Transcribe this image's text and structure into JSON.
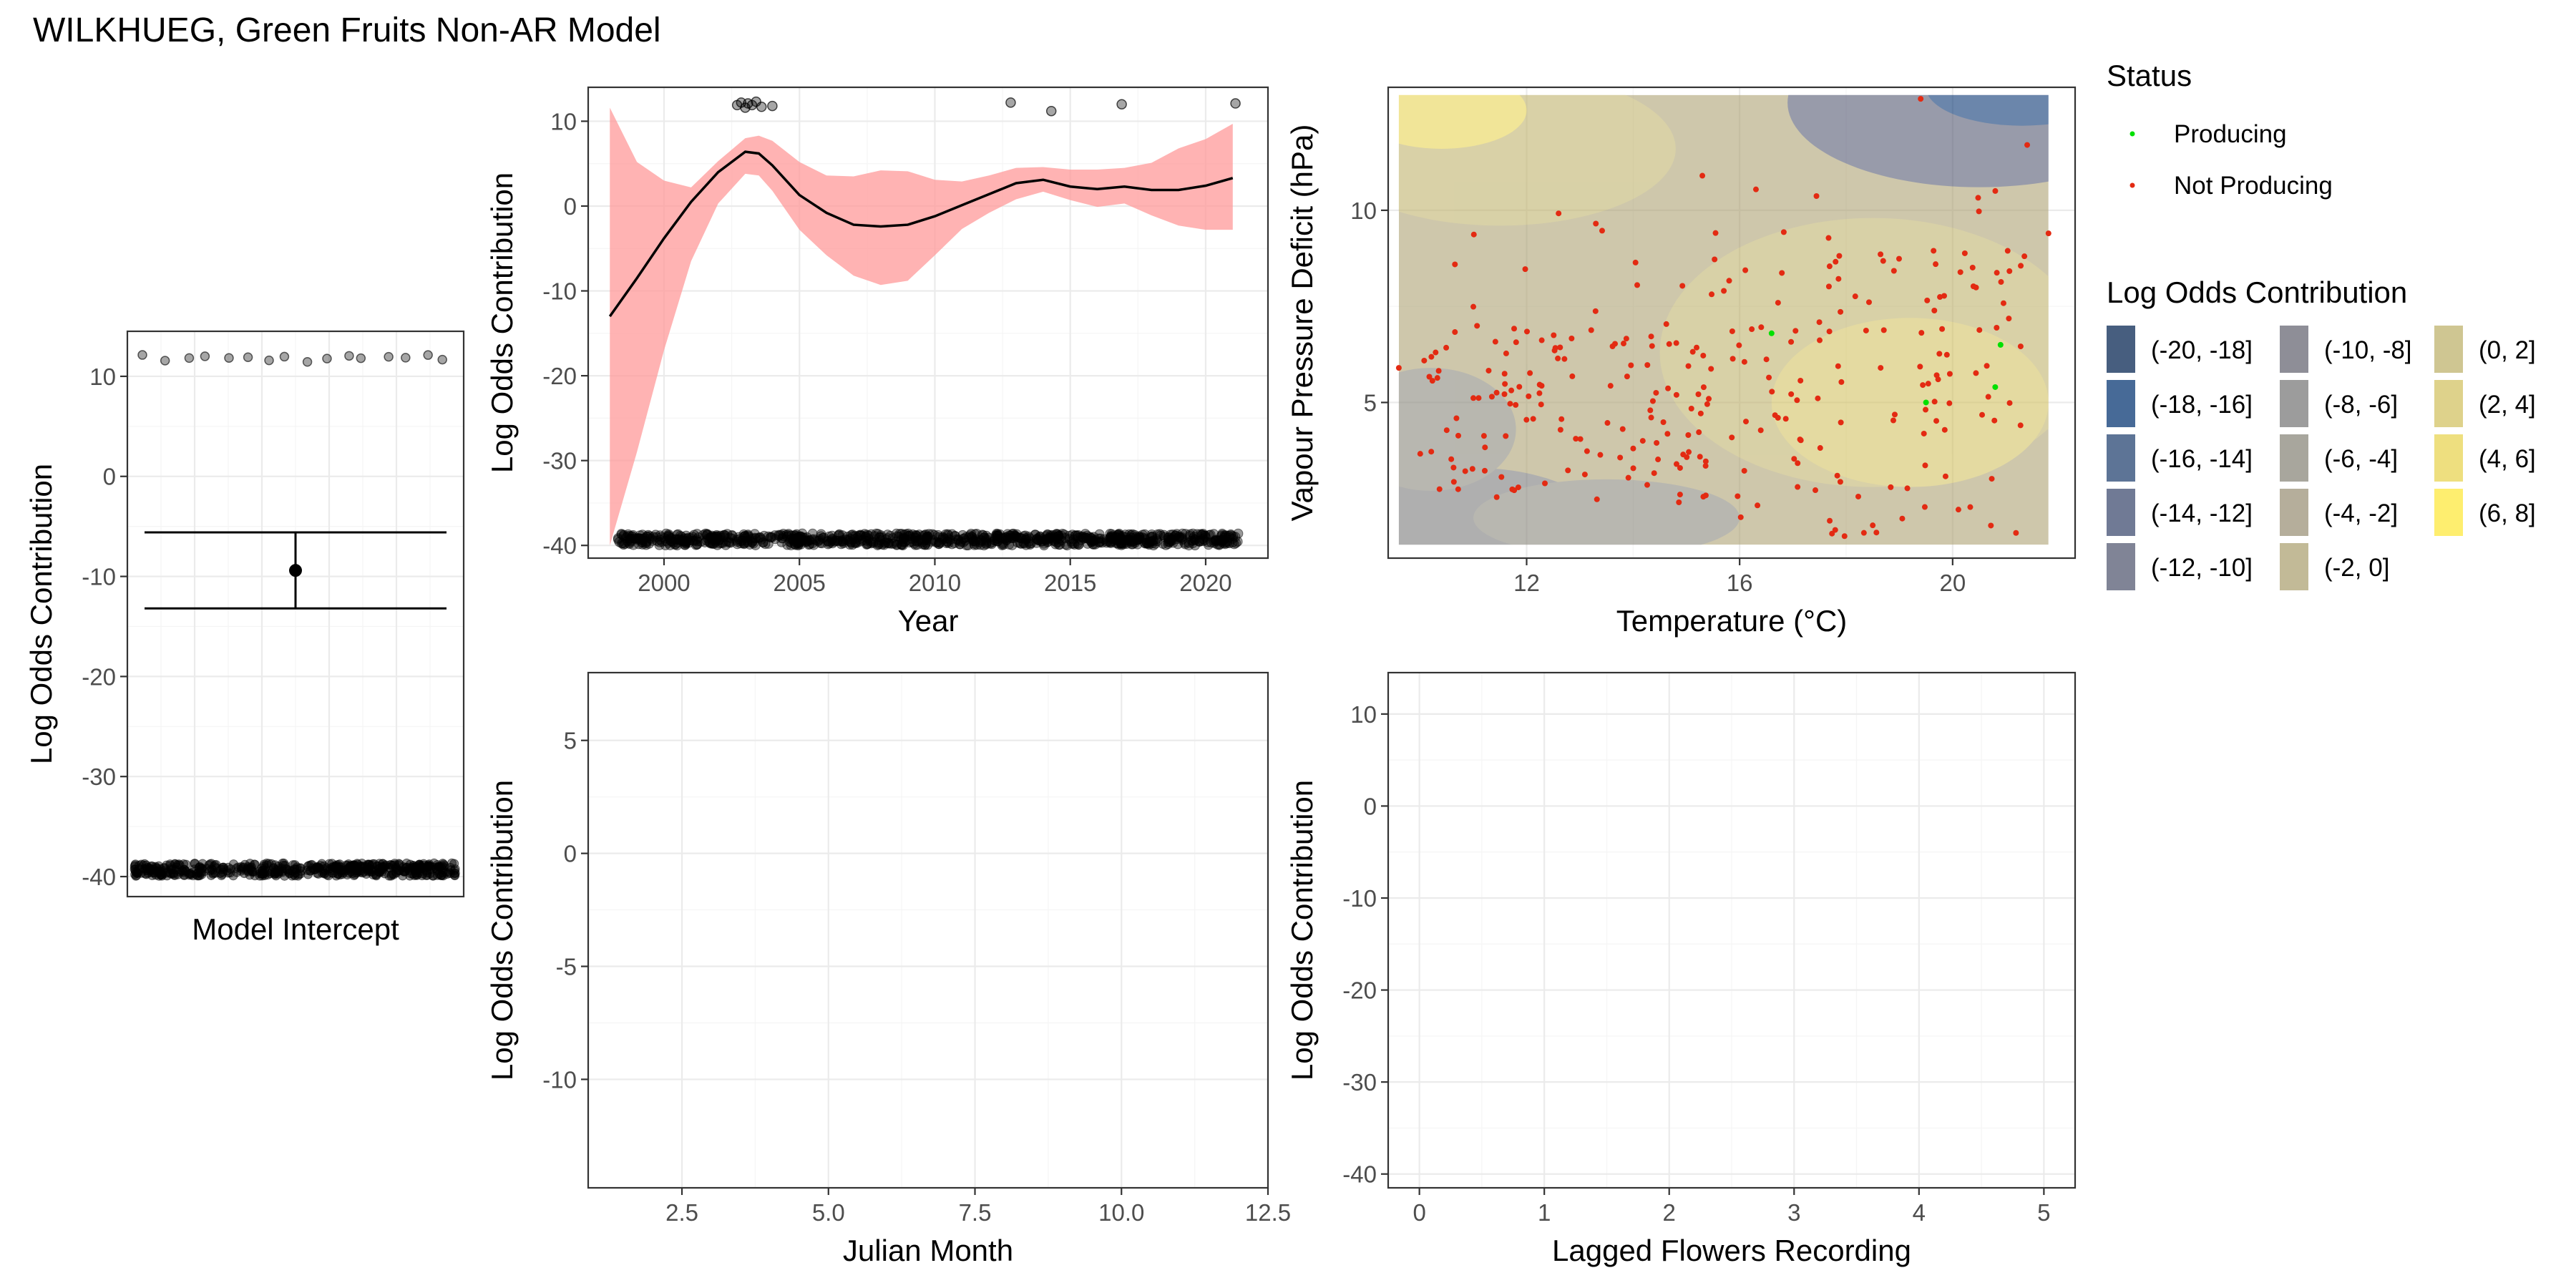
{
  "title": "WILKHUEG, Green Fruits Non-AR Model",
  "colors": {
    "ribbon": "#ff9999",
    "line": "#000000",
    "producing": "#00e000",
    "not_producing": "#e32a12"
  },
  "legend_status": {
    "title": "Status",
    "items": [
      {
        "label": "Producing",
        "color": "#00e000"
      },
      {
        "label": "Not Producing",
        "color": "#e32a12"
      }
    ]
  },
  "legend_contrib": {
    "title": "Log Odds Contribution",
    "items": [
      {
        "label": "(-20, -18]",
        "color": "#00204d"
      },
      {
        "label": "(-18, -16]",
        "color": "#00306f"
      },
      {
        "label": "(-16, -14]",
        "color": "#1e3f6e"
      },
      {
        "label": "(-14, -12]",
        "color": "#39476c"
      },
      {
        "label": "(-12, -10]",
        "color": "#4f546d"
      },
      {
        "label": "(-10, -8]",
        "color": "#62636f"
      },
      {
        "label": "(-8, -6]",
        "color": "#767676"
      },
      {
        "label": "(-6, -4]",
        "color": "#868477"
      },
      {
        "label": "(-4, -2]",
        "color": "#988f74"
      },
      {
        "label": "(-2, 0]",
        "color": "#ab9f6f"
      },
      {
        "label": "(0, 2]",
        "color": "#bdb068"
      },
      {
        "label": "(2, 4]",
        "color": "#d1c05e"
      },
      {
        "label": "(4, 6]",
        "color": "#e7d24e"
      },
      {
        "label": "(6, 8]",
        "color": "#fde737"
      }
    ]
  },
  "chart_data": [
    {
      "id": "intercept",
      "type": "scatter",
      "xlabel": "Model Intercept",
      "ylabel": "Log Odds Contribution",
      "ylim": [
        -42,
        14.5
      ],
      "yticks": [
        -40,
        -30,
        -20,
        -10,
        0,
        10
      ],
      "estimate": -9.4,
      "ci": [
        -13.2,
        -5.6
      ],
      "top_points": 16,
      "top_level": 11.8,
      "bottom_level": -39.3
    },
    {
      "id": "year",
      "type": "line",
      "xlabel": "Year",
      "ylabel": "Log Odds Contribution",
      "xlim": [
        1997.2,
        2022.3
      ],
      "ylim": [
        -41.5,
        14
      ],
      "xticks": [
        2000,
        2005,
        2010,
        2015,
        2020
      ],
      "yticks": [
        -40,
        -30,
        -20,
        -10,
        0,
        10
      ],
      "x": [
        1998,
        1999,
        2000,
        2001,
        2002,
        2003,
        2003.5,
        2004,
        2005,
        2006,
        2007,
        2008,
        2009,
        2010,
        2011,
        2012,
        2013,
        2014,
        2015,
        2016,
        2017,
        2018,
        2019,
        2020,
        2021
      ],
      "fit": [
        -13,
        -8.5,
        -3.8,
        0.5,
        4,
        6.4,
        6.2,
        4.8,
        1.3,
        -0.8,
        -2.2,
        -2.4,
        -2.2,
        -1.2,
        0.1,
        1.4,
        2.7,
        3.1,
        2.3,
        2,
        2.3,
        1.9,
        1.9,
        2.4,
        3.3
      ],
      "lower": [
        -40,
        -29,
        -17,
        -6.5,
        0.3,
        3.8,
        3.6,
        1.8,
        -2.8,
        -5.8,
        -8.2,
        -9.3,
        -8.8,
        -5.8,
        -2.7,
        -0.8,
        0.8,
        1.7,
        0.7,
        -0.1,
        0.3,
        -1.1,
        -2.3,
        -2.8,
        -2.8
      ],
      "upper": [
        11.6,
        5.2,
        3,
        2.2,
        5.3,
        8,
        8.3,
        7.7,
        5.2,
        3.6,
        3.5,
        4.2,
        4.1,
        3.1,
        2.9,
        3.6,
        4.5,
        4.6,
        4.3,
        4.3,
        4.5,
        5.1,
        6.8,
        7.9,
        9.7
      ],
      "top_points_x": [
        2002.7,
        2002.85,
        2003.0,
        2003.1,
        2003.25,
        2003.4,
        2003.6,
        2004.0,
        2012.8,
        2014.3,
        2016.9,
        2021.1
      ],
      "top_points_y": [
        11.9,
        12.2,
        11.6,
        12.1,
        11.9,
        12.3,
        11.7,
        11.8,
        12.2,
        11.2,
        12.0,
        12.1
      ],
      "bottom_level": -39.3,
      "bottom_range": [
        1998.3,
        2021.2
      ]
    },
    {
      "id": "temp_vpd",
      "type": "heatmap",
      "xlabel": "Temperature (°C)",
      "ylabel": "Vapour Pressure Deficit (hPa)",
      "xlim": [
        9.4,
        22.3
      ],
      "ylim": [
        0.95,
        13.2
      ],
      "xticks": [
        12,
        16,
        20
      ],
      "yticks": [
        5,
        10
      ],
      "fill_x": [
        9.6,
        21.8
      ],
      "fill_y": [
        1.3,
        13.0
      ],
      "producing_points": [
        [
          16.6,
          6.8
        ],
        [
          19.5,
          5.0
        ],
        [
          20.8,
          5.4
        ],
        [
          20.9,
          6.5
        ]
      ],
      "not_producing_count": 280
    },
    {
      "id": "month",
      "type": "line",
      "xlabel": "Julian Month",
      "ylabel": "Log Odds Contribution",
      "xlim": [
        0.9,
        12.5
      ],
      "ylim": [
        -14.8,
        8
      ],
      "xticks": [
        2.5,
        5.0,
        7.5,
        10.0,
        12.5
      ],
      "xtick_labels": [
        "2.5",
        "5.0",
        "7.5",
        "10.0",
        "12.5"
      ],
      "yticks": [
        -10,
        -5,
        0,
        5
      ]
    },
    {
      "id": "lagged",
      "type": "line",
      "xlabel": "Lagged Flowers Recording",
      "ylabel": "Log Odds Contribution",
      "xlim": [
        -0.25,
        5.25
      ],
      "ylim": [
        -41.5,
        14.5
      ],
      "xticks": [
        0,
        1,
        2,
        3,
        4,
        5
      ],
      "yticks": [
        -40,
        -30,
        -20,
        -10,
        0,
        10
      ]
    }
  ]
}
